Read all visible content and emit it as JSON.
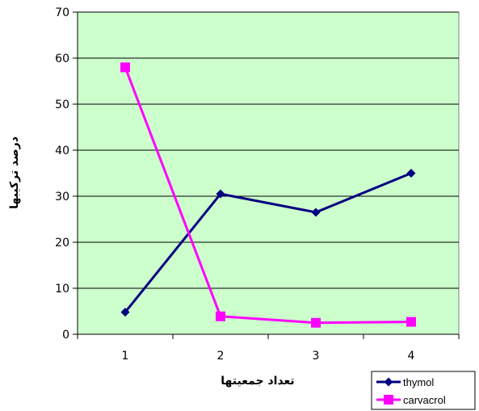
{
  "chart_data": {
    "type": "line",
    "categories": [
      "1",
      "2",
      "3",
      "4"
    ],
    "series": [
      {
        "name": "thymol",
        "values": [
          4.8,
          30.5,
          26.5,
          35
        ],
        "color": "#000080",
        "marker": "diamond"
      },
      {
        "name": "carvacrol",
        "values": [
          58,
          3.9,
          2.5,
          2.7
        ],
        "color": "#ff00ff",
        "marker": "square"
      }
    ],
    "xlabel": "تعداد جمعیتها",
    "ylabel": "درصد ترکیبها",
    "ylim": [
      0,
      70
    ],
    "yticks": [
      0,
      10,
      20,
      30,
      40,
      50,
      60,
      70
    ],
    "plot_background": "#ccffcc",
    "grid": true,
    "legend_position": "bottom-right"
  }
}
